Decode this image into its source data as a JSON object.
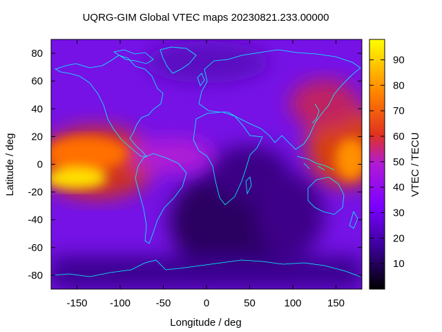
{
  "chart_data": {
    "type": "heatmap",
    "title": "UQRG-GIM Global VTEC maps 20230821.233.00000",
    "xlabel": "Longitude / deg",
    "ylabel": "Latitude / deg",
    "colorbar_label": "VTEC / TECU",
    "xlim": [
      -180,
      180
    ],
    "ylim": [
      -90,
      90
    ],
    "x_ticks": [
      "-150",
      "-100",
      "-50",
      "0",
      "50",
      "100",
      "150"
    ],
    "y_ticks": [
      "-80",
      "-60",
      "-40",
      "-20",
      "0",
      "20",
      "40",
      "60",
      "80"
    ],
    "colorbar_range": [
      0,
      98
    ],
    "colorbar_ticks": [
      "10",
      "20",
      "30",
      "40",
      "50",
      "60",
      "70",
      "80",
      "90"
    ],
    "colormap": [
      "#000000",
      "#3b0099",
      "#7a00ff",
      "#b01ad6",
      "#e0331f",
      "#ff8000",
      "#ffff00"
    ],
    "coastline_color": "#00ffff",
    "grid": false,
    "hotspots_tecu": [
      {
        "lon": -175,
        "lat": -10,
        "tecu": 97
      },
      {
        "lon": -145,
        "lat": 3,
        "tecu": 72
      },
      {
        "lon": -90,
        "lat": 5,
        "tecu": 52
      },
      {
        "lon": 172,
        "lat": 5,
        "tecu": 82
      },
      {
        "lon": 145,
        "lat": 28,
        "tecu": 62
      },
      {
        "lon": 150,
        "lat": -35,
        "tecu": 40
      },
      {
        "lon": 25,
        "lat": 8,
        "tecu": 22
      },
      {
        "lon": 30,
        "lat": -45,
        "tecu": 5
      }
    ]
  }
}
